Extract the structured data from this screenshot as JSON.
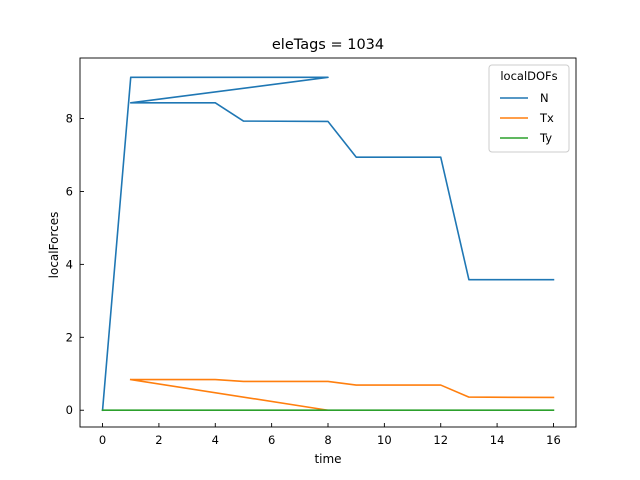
{
  "chart_data": {
    "type": "line",
    "title": "eleTags = 1034",
    "xlabel": "time",
    "ylabel": "localForces",
    "xlim": [
      -0.8,
      16.8
    ],
    "ylim": [
      -0.46,
      9.66
    ],
    "xticks": [
      0,
      2,
      4,
      6,
      8,
      10,
      12,
      14,
      16
    ],
    "yticks": [
      0,
      2,
      4,
      6,
      8
    ],
    "grid": false,
    "legend": {
      "title": "localDOFs",
      "placement": "upper right"
    },
    "series": [
      {
        "name": "N",
        "color": "#1f77b4",
        "x": [
          0,
          1,
          8,
          1,
          4,
          5,
          8,
          9,
          12,
          13,
          16
        ],
        "y": [
          0,
          9.13,
          9.13,
          8.43,
          8.43,
          7.93,
          7.92,
          6.94,
          6.94,
          3.58,
          3.58
        ]
      },
      {
        "name": "Tx",
        "color": "#ff7f0e",
        "x": [
          1,
          8,
          1,
          4,
          5,
          8,
          9,
          12,
          13,
          16
        ],
        "y": [
          0.84,
          0.0,
          0.84,
          0.84,
          0.79,
          0.79,
          0.69,
          0.69,
          0.36,
          0.35
        ]
      },
      {
        "name": "Ty",
        "color": "#2ca02c",
        "x": [
          0,
          1,
          8,
          16
        ],
        "y": [
          0,
          0,
          0,
          0
        ]
      }
    ]
  }
}
